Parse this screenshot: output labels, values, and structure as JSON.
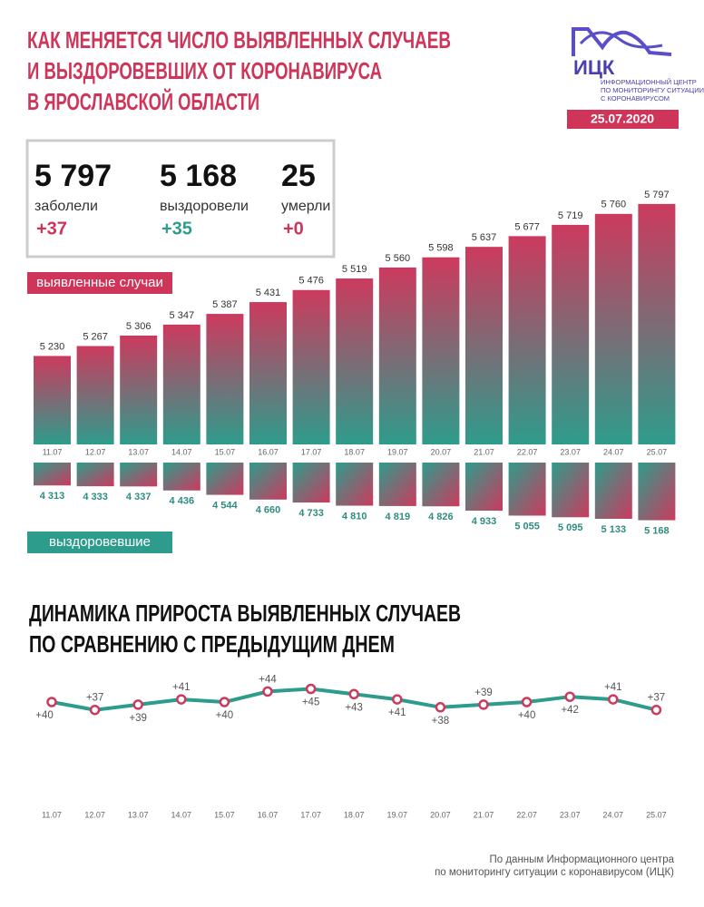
{
  "header": {
    "title": [
      "КАК МЕНЯЕТСЯ ЧИСЛО ВЫЯВЛЕННЫХ СЛУЧАЕВ",
      "И ВЫЗДОРОВЕВШИХ ОТ КОРОНАВИРУСА",
      "В ЯРОСЛАВСКОЙ ОБЛАСТИ"
    ],
    "logo": "ИЦК",
    "logo_sub": [
      "ИНФОРМАЦИОННЫЙ ЦЕНТР",
      "ПО МОНИТОРИНГУ СИТУАЦИИ",
      "С КОРОНАВИРУСОМ"
    ],
    "date": "25.07.2020"
  },
  "stats": [
    {
      "value": "5 797",
      "label": "заболели",
      "change": "+37",
      "color": "#cf3559"
    },
    {
      "value": "5 168",
      "label": "выздоровели",
      "change": "+35",
      "color": "#2e9c8c"
    },
    {
      "value": "25",
      "label": "умерли",
      "change": "+0",
      "color": "#cf3559"
    }
  ],
  "chart_data": [
    {
      "type": "bar",
      "categories": [
        "11.07",
        "12.07",
        "13.07",
        "14.07",
        "15.07",
        "16.07",
        "17.07",
        "18.07",
        "19.07",
        "20.07",
        "21.07",
        "22.07",
        "23.07",
        "24.07",
        "25.07"
      ],
      "series": [
        {
          "name": "выявленные случаи",
          "color": "#cf3559",
          "gradient": [
            "#cc3a5e",
            "#2e9c8c"
          ],
          "values": [
            5230,
            5267,
            5306,
            5347,
            5387,
            5431,
            5476,
            5519,
            5560,
            5598,
            5637,
            5677,
            5719,
            5760,
            5797
          ],
          "value_labels": [
            "5 230",
            "5 267",
            "5 306",
            "5 347",
            "5 387",
            "5 431",
            "5 476",
            "5 519",
            "5 560",
            "5 598",
            "5 637",
            "5 677",
            "5 719",
            "5 760",
            "5 797"
          ]
        }
      ],
      "ylim": [
        4900,
        5800
      ]
    },
    {
      "type": "bar",
      "series": [
        {
          "name": "выздоровевшие",
          "color": "#2e9c8c",
          "gradient": [
            "#2e9c8c",
            "#cc3a5e"
          ],
          "values": [
            4313,
            4333,
            4337,
            4436,
            4544,
            4660,
            4733,
            4810,
            4819,
            4826,
            4933,
            5055,
            5095,
            5133,
            5168
          ],
          "value_labels": [
            "4 313",
            "4 333",
            "4 337",
            "4 436",
            "4 544",
            "4 660",
            "4 733",
            "4 810",
            "4 819",
            "4 826",
            "4 933",
            "5 055",
            "5 095",
            "5 133",
            "5 168"
          ]
        }
      ],
      "ylim": [
        3750,
        5200
      ]
    },
    {
      "type": "line",
      "title": [
        "ДИНАМИКА ПРИРОСТА ВЫЯВЛЕННЫХ СЛУЧАЕВ",
        "ПО СРАВНЕНИЮ С ПРЕДЫДУЩИМ ДНЕМ"
      ],
      "categories": [
        "11.07",
        "12.07",
        "13.07",
        "14.07",
        "15.07",
        "16.07",
        "17.07",
        "18.07",
        "19.07",
        "20.07",
        "21.07",
        "22.07",
        "23.07",
        "24.07",
        "25.07"
      ],
      "series": [
        {
          "color": "#2e9c8c",
          "marker_color": "#cc3a5e",
          "values": [
            40,
            37,
            39,
            41,
            40,
            44,
            45,
            43,
            41,
            38,
            39,
            40,
            42,
            41,
            37
          ],
          "value_labels": [
            "+40",
            "+37",
            "+39",
            "+41",
            "+40",
            "+44",
            "+45",
            "+43",
            "+41",
            "+38",
            "+39",
            "+40",
            "+42",
            "+41",
            "+37"
          ]
        }
      ],
      "ylim": [
        30,
        50
      ]
    }
  ],
  "footer": [
    "По данным Информационного центра",
    "по мониторингу ситуации с коронавирусом (ИЦК)"
  ]
}
